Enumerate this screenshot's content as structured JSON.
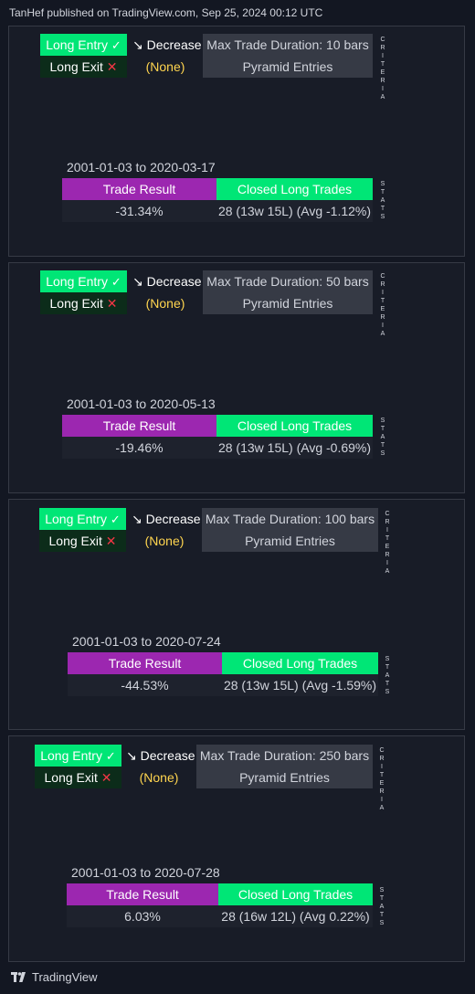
{
  "header": {
    "published": "TanHef published on TradingView.com, Sep 25, 2024 00:12 UTC"
  },
  "panels": [
    {
      "entry": "Long Entry",
      "exit": "Long Exit",
      "decrease": "Decrease",
      "none": "(None)",
      "criteria_1": "Max Trade Duration: 10 bars",
      "criteria_2": "Pyramid Entries",
      "criteria_label": "CRITERIA",
      "date_range": "2001-01-03 to 2020-03-17",
      "stat_1_header": "Trade Result",
      "stat_2_header": "Closed Long Trades",
      "stat_1_value": "-31.34%",
      "stat_2_value": "28 (13w 15L) (Avg -1.12%)",
      "stats_label": "STATS"
    },
    {
      "entry": "Long Entry",
      "exit": "Long Exit",
      "decrease": "Decrease",
      "none": "(None)",
      "criteria_1": "Max Trade Duration: 50 bars",
      "criteria_2": "Pyramid Entries",
      "criteria_label": "CRITERIA",
      "date_range": "2001-01-03 to 2020-05-13",
      "stat_1_header": "Trade Result",
      "stat_2_header": "Closed Long Trades",
      "stat_1_value": "-19.46%",
      "stat_2_value": "28 (13w 15L) (Avg -0.69%)",
      "stats_label": "STATS"
    },
    {
      "entry": "Long Entry",
      "exit": "Long Exit",
      "decrease": "Decrease",
      "none": "(None)",
      "criteria_1": "Max Trade Duration: 100 bars",
      "criteria_2": "Pyramid Entries",
      "criteria_label": "CRITERIA",
      "date_range": "2001-01-03 to 2020-07-24",
      "stat_1_header": "Trade Result",
      "stat_2_header": "Closed Long Trades",
      "stat_1_value": "-44.53%",
      "stat_2_value": "28 (13w 15L) (Avg -1.59%)",
      "stats_label": "STATS"
    },
    {
      "entry": "Long Entry",
      "exit": "Long Exit",
      "decrease": "Decrease",
      "none": "(None)",
      "criteria_1": "Max Trade Duration: 250 bars",
      "criteria_2": "Pyramid Entries",
      "criteria_label": "CRITERIA",
      "date_range": "2001-01-03 to 2020-07-28",
      "stat_1_header": "Trade Result",
      "stat_2_header": "Closed Long Trades",
      "stat_1_value": "6.03%",
      "stat_2_value": "28 (16w 12L) (Avg 0.22%)",
      "stats_label": "STATS"
    }
  ],
  "footer": {
    "brand": "TradingView"
  },
  "colors": {
    "background": "#131722",
    "panel": "#181c27",
    "entry_green": "#00e676",
    "exit_dark_green": "#0c2c1a",
    "trade_result_purple": "#9c27b0",
    "criteria_gray": "#363a45",
    "none_yellow": "#ffd54f",
    "x_red": "#f23645"
  },
  "icons": {
    "check": "check-icon",
    "cross": "cross-icon",
    "decrease_arrow": "arrow-down-right-icon"
  }
}
